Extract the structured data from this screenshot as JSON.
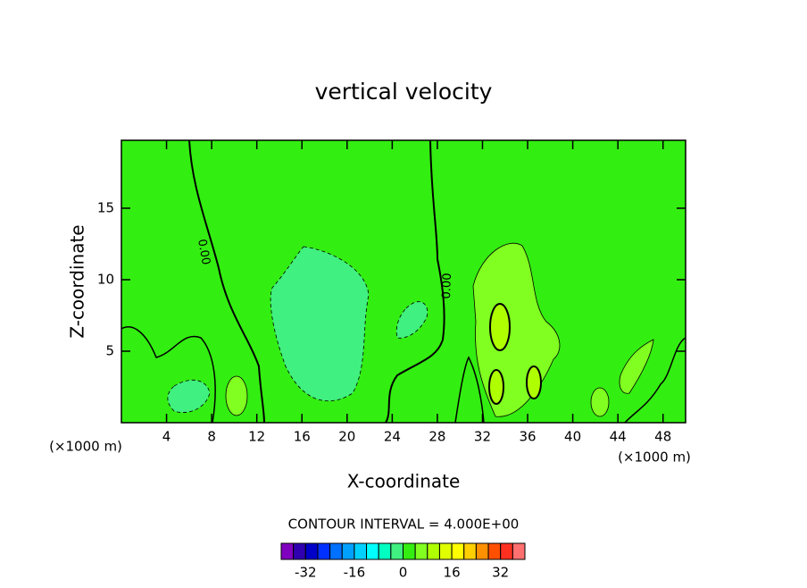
{
  "chart_data": {
    "type": "contour",
    "title": "vertical velocity",
    "x_label": "X-coordinate",
    "y_label": "Z-coordinate",
    "x_unit": "(×1000 m)",
    "y_unit": "(×1000 m)",
    "xlim": [
      0,
      50
    ],
    "ylim": [
      0,
      19.75
    ],
    "xticks": [
      4,
      8,
      12,
      16,
      20,
      24,
      28,
      32,
      36,
      40,
      44,
      48
    ],
    "yticks": [
      5,
      10,
      15
    ],
    "contour_labels": [
      "0.00",
      "0.00"
    ],
    "contour_interval": "CONTOUR INTERVAL = 4.000E+00",
    "colorbar": {
      "levels": [
        -40,
        -36,
        -32,
        -28,
        -24,
        -20,
        -16,
        -12,
        -8,
        -4,
        0,
        4,
        8,
        12,
        16,
        20,
        24,
        28,
        32,
        36,
        40
      ],
      "colors": [
        "#8000c0",
        "#3000b0",
        "#0000c8",
        "#0030ff",
        "#0070ff",
        "#00a0ff",
        "#00d0ff",
        "#00ffff",
        "#00ffc0",
        "#40f080",
        "#33ee11",
        "#80ff20",
        "#b0ff00",
        "#e0ff00",
        "#ffff00",
        "#ffd000",
        "#ff9000",
        "#ff5000",
        "#ff3020",
        "#ff7070"
      ],
      "ticks": [
        -32,
        -16,
        0,
        16,
        32
      ]
    }
  }
}
